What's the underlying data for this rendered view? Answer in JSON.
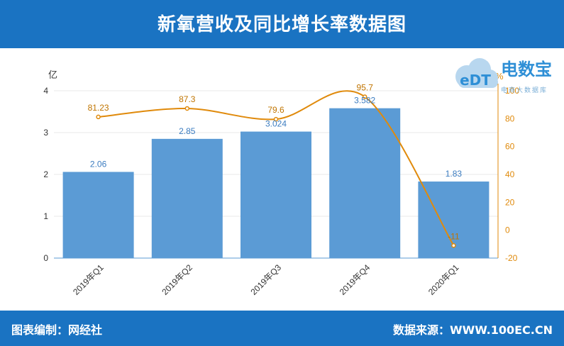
{
  "header": {
    "title": "新氧营收及同比增长率数据图"
  },
  "footer": {
    "editor": "图表编制：网经社",
    "source": "数据来源：WWW.100EC.CN"
  },
  "logo": {
    "name": "电数宝",
    "badge": "eDT",
    "subtitle": "电商大数据库"
  },
  "colors": {
    "bar": "#5b9bd5",
    "line": "#e08a0b",
    "header": "#1a73c2"
  },
  "chart_data": {
    "type": "bar+line",
    "categories": [
      "2019年Q1",
      "2019年Q2",
      "2019年Q3",
      "2019年Q4",
      "2020年Q1"
    ],
    "series": [
      {
        "name": "营收",
        "axis": "left",
        "unit": "亿",
        "values": [
          2.06,
          2.85,
          3.024,
          3.582,
          1.83
        ],
        "labels": [
          "2.06",
          "2.85",
          "3.024",
          "3.582",
          "1.83"
        ]
      },
      {
        "name": "同比增长率",
        "axis": "right",
        "unit": "%",
        "values": [
          81.23,
          87.3,
          79.6,
          95.7,
          -11
        ],
        "labels": [
          "81.23",
          "87.3",
          "79.6",
          "95.7",
          "-11"
        ]
      }
    ],
    "left_axis": {
      "label": "亿",
      "ylim": [
        0,
        4
      ],
      "ticks": [
        "0",
        "1",
        "2",
        "3",
        "4"
      ]
    },
    "right_axis": {
      "label": "%",
      "ylim": [
        -20,
        100
      ],
      "ticks": [
        "-20",
        "0",
        "20",
        "40",
        "60",
        "80",
        "100"
      ]
    },
    "grid": true
  }
}
